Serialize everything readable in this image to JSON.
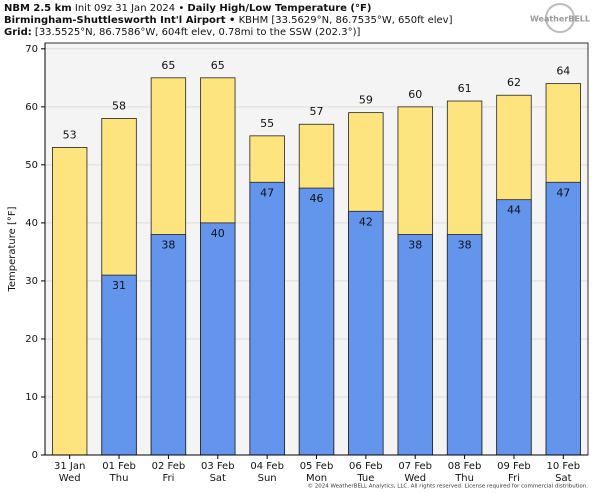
{
  "header": {
    "line1": [
      "NBM 2.5 km",
      "Init 09z 31 Jan 2024 •",
      "Daily High/Low Temperature (°F)"
    ],
    "line2": [
      "Birmingham-Shuttlesworth Int'l Airport •",
      "KBHM [33.5629°N, 86.7535°W, 650ft elev]"
    ],
    "line3": [
      "Grid:",
      "[33.5525°N, 86.7586°W, 604ft elev, 0.78mi to the SSW (202.3°)]"
    ],
    "logo": "WeatherBELL"
  },
  "chart_data": {
    "type": "bar",
    "ylabel": "Temperature [°F]",
    "categories": [
      "31 Jan",
      "01 Feb",
      "02 Feb",
      "03 Feb",
      "04 Feb",
      "05 Feb",
      "06 Feb",
      "07 Feb",
      "08 Feb",
      "09 Feb",
      "10 Feb"
    ],
    "weekdays": [
      "Wed",
      "Thu",
      "Fri",
      "Sat",
      "Sun",
      "Mon",
      "Tue",
      "Wed",
      "Thu",
      "Fri",
      "Sat"
    ],
    "series": [
      {
        "name": "High",
        "color": "#fde47f",
        "values": [
          53,
          58,
          65,
          65,
          55,
          57,
          59,
          60,
          61,
          62,
          64
        ]
      },
      {
        "name": "Low",
        "color": "#6495ed",
        "values": [
          null,
          31,
          38,
          40,
          47,
          46,
          42,
          38,
          38,
          44,
          47
        ]
      }
    ],
    "ylim": [
      0,
      71
    ],
    "yticks": [
      0,
      10,
      20,
      30,
      40,
      50,
      60,
      70
    ],
    "grid": true
  },
  "footer": "© 2024 WeatherBELL Analytics, LLC. All rights reserved. License required for commercial distribution."
}
